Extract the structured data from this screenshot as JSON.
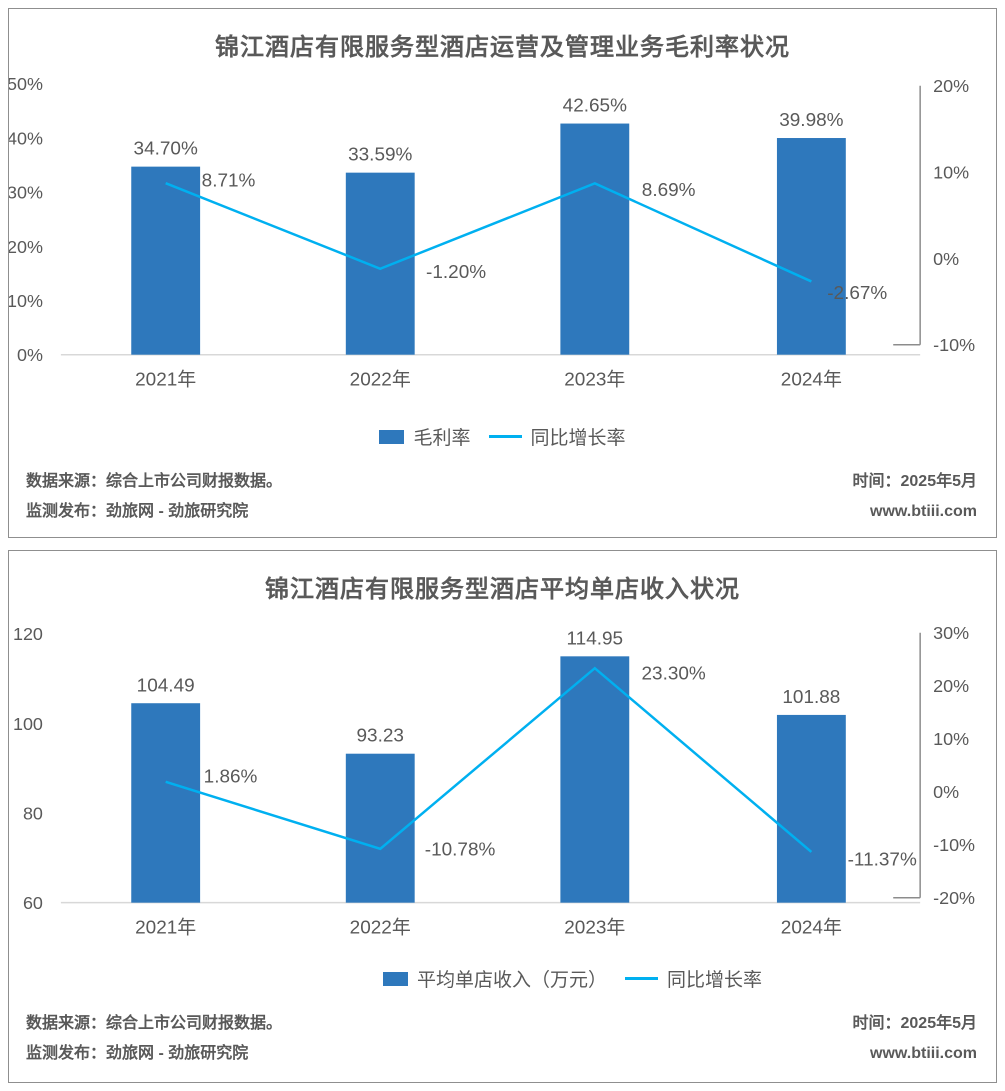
{
  "cards": [
    {
      "title": "锦江酒店有限服务型酒店运营及管理业务毛利率状况",
      "legend": [
        {
          "label": "毛利率",
          "marker": "bar-swatch",
          "color": "#2e78bc"
        },
        {
          "label": "同比增长率",
          "marker": "line-swatch",
          "color": "#00b0f0"
        }
      ],
      "footer": {
        "source": "数据来源：综合上市公司财报数据。",
        "publisher": "监测发布：劲旅网 - 劲旅研究院",
        "time": "时间：2025年5月",
        "website": "www.btiii.com"
      }
    },
    {
      "title": "锦江酒店有限服务型酒店平均单店收入状况",
      "legend": [
        {
          "label": "平均单店收入（万元）",
          "marker": "bar-swatch",
          "color": "#2e78bc"
        },
        {
          "label": "同比增长率",
          "marker": "line-swatch",
          "color": "#00b0f0"
        }
      ],
      "footer": {
        "source": "数据来源：综合上市公司财报数据。",
        "publisher": "监测发布：劲旅网 - 劲旅研究院",
        "time": "时间：2025年5月",
        "website": "www.btiii.com"
      }
    }
  ],
  "chart_data": [
    {
      "type": "bar",
      "combo": "bar+line dual axis",
      "title": "锦江酒店有限服务型酒店运营及管理业务毛利率状况",
      "categories": [
        "2021年",
        "2022年",
        "2023年",
        "2024年"
      ],
      "series": [
        {
          "name": "毛利率",
          "type": "bar",
          "axis": "left",
          "color": "#2e78bc",
          "values": [
            34.7,
            33.59,
            42.65,
            39.98
          ],
          "labels": [
            "34.70%",
            "33.59%",
            "42.65%",
            "39.98%"
          ]
        },
        {
          "name": "同比增长率",
          "type": "line",
          "axis": "right",
          "color": "#00b0f0",
          "values": [
            8.71,
            -1.2,
            8.69,
            -2.67
          ],
          "labels": [
            "8.71%",
            "-1.20%",
            "8.69%",
            "-2.67%"
          ],
          "label_offsets": [
            [
              63,
              -3
            ],
            [
              76,
              3
            ],
            [
              74,
              6
            ],
            [
              46,
              11
            ]
          ]
        }
      ],
      "left_axis": {
        "min": 0,
        "max": 50,
        "tick_values": [
          0,
          10,
          20,
          30,
          40,
          50
        ],
        "tick_labels": [
          "0%",
          "10%",
          "20%",
          "30%",
          "40%",
          "50%"
        ]
      },
      "right_axis": {
        "min": -10,
        "max": 20,
        "tick_values": [
          -10,
          0,
          10,
          20
        ],
        "tick_labels": [
          "-10%",
          "0%",
          "10%",
          "20%"
        ]
      },
      "legend_position": "bottom",
      "grid": false
    },
    {
      "type": "bar",
      "combo": "bar+line dual axis",
      "title": "锦江酒店有限服务型酒店平均单店收入状况",
      "categories": [
        "2021年",
        "2022年",
        "2023年",
        "2024年"
      ],
      "series": [
        {
          "name": "平均单店收入（万元）",
          "type": "bar",
          "axis": "left",
          "color": "#2e78bc",
          "values": [
            104.49,
            93.23,
            114.95,
            101.88
          ],
          "labels": [
            "104.49",
            "93.23",
            "114.95",
            "101.88"
          ]
        },
        {
          "name": "同比增长率",
          "type": "line",
          "axis": "right",
          "color": "#00b0f0",
          "values": [
            1.86,
            -10.78,
            23.3,
            -11.37
          ],
          "labels": [
            "1.86%",
            "-10.78%",
            "23.30%",
            "-11.37%"
          ],
          "label_offsets": [
            [
              65,
              -6
            ],
            [
              80,
              0
            ],
            [
              79,
              5
            ],
            [
              71,
              7
            ]
          ]
        }
      ],
      "left_axis": {
        "min": 60,
        "max": 120,
        "tick_values": [
          60,
          80,
          100,
          120
        ],
        "tick_labels": [
          "60",
          "80",
          "100",
          "120"
        ]
      },
      "right_axis": {
        "min": -20,
        "max": 30,
        "tick_values": [
          -20,
          -10,
          0,
          10,
          20,
          30
        ],
        "tick_labels": [
          "-20%",
          "-10%",
          "0%",
          "10%",
          "20%",
          "30%"
        ]
      },
      "legend_position": "bottom",
      "grid": false
    }
  ]
}
